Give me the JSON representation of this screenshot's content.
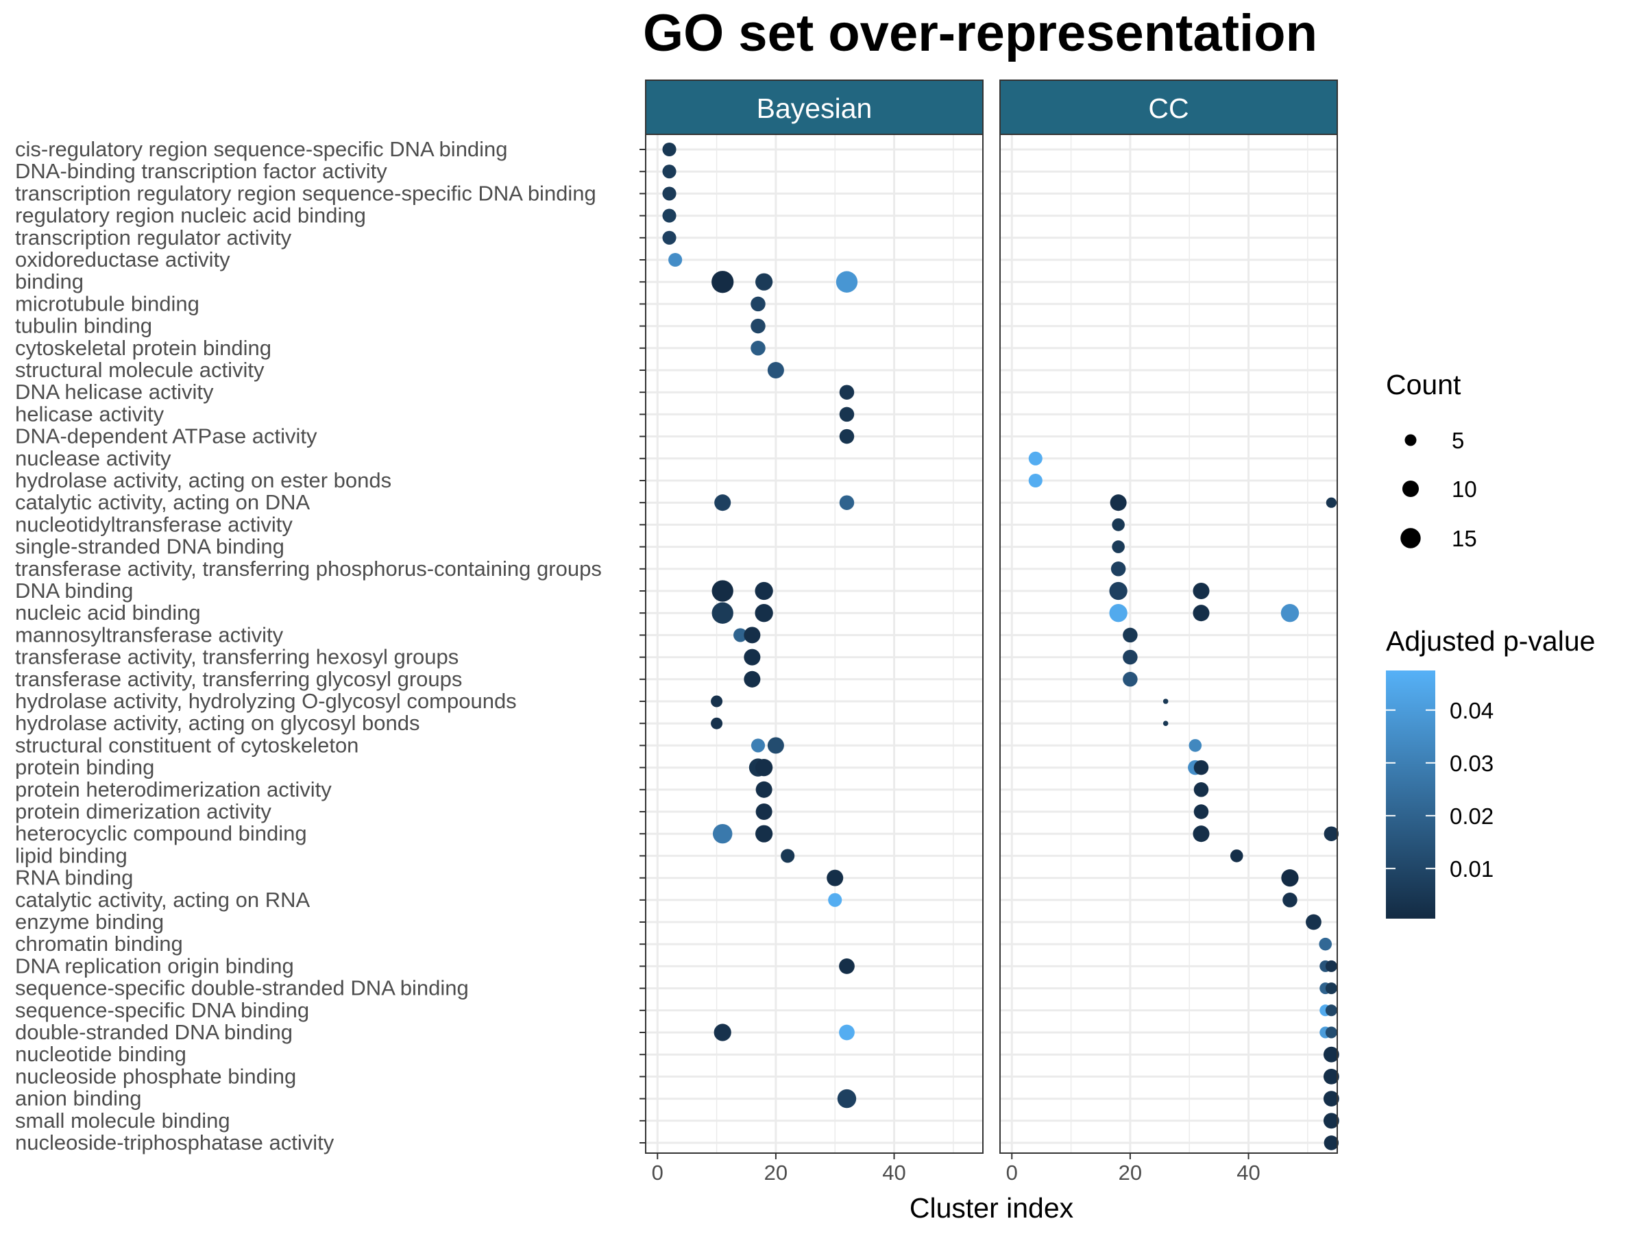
{
  "chart_data": {
    "type": "scatter",
    "title": "GO set over-representation",
    "xlabel": "Cluster index",
    "ylabel": "",
    "xlim": [
      -2,
      55
    ],
    "xticks": [
      0,
      20,
      40
    ],
    "grid": true,
    "legend_placement": "right",
    "panels": [
      "Bayesian",
      "CC"
    ],
    "terms": [
      "cis-regulatory region sequence-specific DNA binding",
      "DNA-binding transcription factor activity",
      "transcription regulatory region sequence-specific DNA binding",
      "regulatory region nucleic acid binding",
      "transcription regulator activity",
      "oxidoreductase activity",
      "binding",
      "microtubule binding",
      "tubulin binding",
      "cytoskeletal protein binding",
      "structural molecule activity",
      "DNA helicase activity",
      "helicase activity",
      "DNA-dependent ATPase activity",
      "nuclease activity",
      "hydrolase activity, acting on ester bonds",
      "catalytic activity, acting on DNA",
      "nucleotidyltransferase activity",
      "single-stranded DNA binding",
      "transferase activity, transferring phosphorus-containing groups",
      "DNA binding",
      "nucleic acid binding",
      "mannosyltransferase activity",
      "transferase activity, transferring hexosyl groups",
      "transferase activity, transferring glycosyl groups",
      "hydrolase activity, hydrolyzing O-glycosyl compounds",
      "hydrolase activity, acting on glycosyl bonds",
      "structural constituent of cytoskeleton",
      "protein binding",
      "protein heterodimerization activity",
      "protein dimerization activity",
      "heterocyclic compound binding",
      "lipid binding",
      "RNA binding",
      "catalytic activity, acting on RNA",
      "enzyme binding",
      "chromatin binding",
      "DNA replication origin binding",
      "sequence-specific double-stranded DNA binding",
      "sequence-specific DNA binding",
      "double-stranded DNA binding",
      "nucleotide binding",
      "nucleoside phosphate binding",
      "anion binding",
      "small molecule binding",
      "nucleoside-triphosphatase activity"
    ],
    "points": [
      {
        "panel": "Bayesian",
        "term": "cis-regulatory region sequence-specific DNA binding",
        "x": 2,
        "count": 7,
        "padj": 0.005
      },
      {
        "panel": "Bayesian",
        "term": "DNA-binding transcription factor activity",
        "x": 2,
        "count": 7,
        "padj": 0.006
      },
      {
        "panel": "Bayesian",
        "term": "transcription regulatory region sequence-specific DNA binding",
        "x": 2,
        "count": 7,
        "padj": 0.006
      },
      {
        "panel": "Bayesian",
        "term": "regulatory region nucleic acid binding",
        "x": 2,
        "count": 7,
        "padj": 0.007
      },
      {
        "panel": "Bayesian",
        "term": "transcription regulator activity",
        "x": 2,
        "count": 7,
        "padj": 0.008
      },
      {
        "panel": "Bayesian",
        "term": "oxidoreductase activity",
        "x": 3,
        "count": 7,
        "padj": 0.035
      },
      {
        "panel": "Bayesian",
        "term": "binding",
        "x": 11,
        "count": 18,
        "padj": 0.001
      },
      {
        "panel": "Bayesian",
        "term": "binding",
        "x": 18,
        "count": 11,
        "padj": 0.006
      },
      {
        "panel": "Bayesian",
        "term": "binding",
        "x": 32,
        "count": 17,
        "padj": 0.038
      },
      {
        "panel": "Bayesian",
        "term": "microtubule binding",
        "x": 17,
        "count": 8,
        "padj": 0.009
      },
      {
        "panel": "Bayesian",
        "term": "tubulin binding",
        "x": 17,
        "count": 8,
        "padj": 0.01
      },
      {
        "panel": "Bayesian",
        "term": "cytoskeletal protein binding",
        "x": 17,
        "count": 8,
        "padj": 0.018
      },
      {
        "panel": "Bayesian",
        "term": "structural molecule activity",
        "x": 20,
        "count": 10,
        "padj": 0.015
      },
      {
        "panel": "Bayesian",
        "term": "DNA helicase activity",
        "x": 32,
        "count": 8,
        "padj": 0.004
      },
      {
        "panel": "Bayesian",
        "term": "helicase activity",
        "x": 32,
        "count": 8,
        "padj": 0.004
      },
      {
        "panel": "Bayesian",
        "term": "DNA-dependent ATPase activity",
        "x": 32,
        "count": 8,
        "padj": 0.004
      },
      {
        "panel": "Bayesian",
        "term": "catalytic activity, acting on DNA",
        "x": 11,
        "count": 10,
        "padj": 0.008
      },
      {
        "panel": "Bayesian",
        "term": "catalytic activity, acting on DNA",
        "x": 32,
        "count": 8,
        "padj": 0.02
      },
      {
        "panel": "Bayesian",
        "term": "DNA binding",
        "x": 11,
        "count": 17,
        "padj": 0.001
      },
      {
        "panel": "Bayesian",
        "term": "DNA binding",
        "x": 18,
        "count": 12,
        "padj": 0.002
      },
      {
        "panel": "Bayesian",
        "term": "nucleic acid binding",
        "x": 11,
        "count": 17,
        "padj": 0.006
      },
      {
        "panel": "Bayesian",
        "term": "nucleic acid binding",
        "x": 18,
        "count": 12,
        "padj": 0.002
      },
      {
        "panel": "Bayesian",
        "term": "mannosyltransferase activity",
        "x": 14,
        "count": 7,
        "padj": 0.02
      },
      {
        "panel": "Bayesian",
        "term": "mannosyltransferase activity",
        "x": 16,
        "count": 10,
        "padj": 0.002
      },
      {
        "panel": "Bayesian",
        "term": "transferase activity, transferring hexosyl groups",
        "x": 16,
        "count": 10,
        "padj": 0.002
      },
      {
        "panel": "Bayesian",
        "term": "transferase activity, transferring glycosyl groups",
        "x": 16,
        "count": 10,
        "padj": 0.002
      },
      {
        "panel": "Bayesian",
        "term": "hydrolase activity, hydrolyzing O-glycosyl compounds",
        "x": 10,
        "count": 5,
        "padj": 0.003
      },
      {
        "panel": "Bayesian",
        "term": "hydrolase activity, acting on glycosyl bonds",
        "x": 10,
        "count": 5,
        "padj": 0.003
      },
      {
        "panel": "Bayesian",
        "term": "structural constituent of cytoskeleton",
        "x": 17,
        "count": 7,
        "padj": 0.03
      },
      {
        "panel": "Bayesian",
        "term": "structural constituent of cytoskeleton",
        "x": 20,
        "count": 10,
        "padj": 0.012
      },
      {
        "panel": "Bayesian",
        "term": "protein binding",
        "x": 17,
        "count": 12,
        "padj": 0.004
      },
      {
        "panel": "Bayesian",
        "term": "protein binding",
        "x": 18,
        "count": 11,
        "padj": 0.002
      },
      {
        "panel": "Bayesian",
        "term": "protein heterodimerization activity",
        "x": 18,
        "count": 10,
        "padj": 0.002
      },
      {
        "panel": "Bayesian",
        "term": "protein dimerization activity",
        "x": 18,
        "count": 10,
        "padj": 0.002
      },
      {
        "panel": "Bayesian",
        "term": "heterocyclic compound binding",
        "x": 11,
        "count": 14,
        "padj": 0.028
      },
      {
        "panel": "Bayesian",
        "term": "heterocyclic compound binding",
        "x": 18,
        "count": 11,
        "padj": 0.002
      },
      {
        "panel": "Bayesian",
        "term": "lipid binding",
        "x": 22,
        "count": 7,
        "padj": 0.005
      },
      {
        "panel": "Bayesian",
        "term": "RNA binding",
        "x": 30,
        "count": 10,
        "padj": 0.002
      },
      {
        "panel": "Bayesian",
        "term": "catalytic activity, acting on RNA",
        "x": 30,
        "count": 7,
        "padj": 0.046
      },
      {
        "panel": "Bayesian",
        "term": "DNA replication origin binding",
        "x": 32,
        "count": 9,
        "padj": 0.002
      },
      {
        "panel": "Bayesian",
        "term": "double-stranded DNA binding",
        "x": 11,
        "count": 11,
        "padj": 0.003
      },
      {
        "panel": "Bayesian",
        "term": "double-stranded DNA binding",
        "x": 32,
        "count": 9,
        "padj": 0.046
      },
      {
        "panel": "Bayesian",
        "term": "anion binding",
        "x": 32,
        "count": 13,
        "padj": 0.008
      },
      {
        "panel": "CC",
        "term": "nuclease activity",
        "x": 4,
        "count": 7,
        "padj": 0.046
      },
      {
        "panel": "CC",
        "term": "hydrolase activity, acting on ester bonds",
        "x": 4,
        "count": 7,
        "padj": 0.046
      },
      {
        "panel": "CC",
        "term": "catalytic activity, acting on DNA",
        "x": 18,
        "count": 10,
        "padj": 0.002
      },
      {
        "panel": "CC",
        "term": "catalytic activity, acting on DNA",
        "x": 54,
        "count": 4,
        "padj": 0.004
      },
      {
        "panel": "CC",
        "term": "nucleotidyltransferase activity",
        "x": 18,
        "count": 6,
        "padj": 0.005
      },
      {
        "panel": "CC",
        "term": "single-stranded DNA binding",
        "x": 18,
        "count": 6,
        "padj": 0.006
      },
      {
        "panel": "CC",
        "term": "transferase activity, transferring phosphorus-containing groups",
        "x": 18,
        "count": 8,
        "padj": 0.008
      },
      {
        "panel": "CC",
        "term": "DNA binding",
        "x": 18,
        "count": 12,
        "padj": 0.008
      },
      {
        "panel": "CC",
        "term": "DNA binding",
        "x": 32,
        "count": 10,
        "padj": 0.002
      },
      {
        "panel": "CC",
        "term": "nucleic acid binding",
        "x": 18,
        "count": 12,
        "padj": 0.045
      },
      {
        "panel": "CC",
        "term": "nucleic acid binding",
        "x": 32,
        "count": 10,
        "padj": 0.002
      },
      {
        "panel": "CC",
        "term": "nucleic acid binding",
        "x": 47,
        "count": 12,
        "padj": 0.036
      },
      {
        "panel": "CC",
        "term": "mannosyltransferase activity",
        "x": 20,
        "count": 8,
        "padj": 0.005
      },
      {
        "panel": "CC",
        "term": "transferase activity, transferring hexosyl groups",
        "x": 20,
        "count": 8,
        "padj": 0.008
      },
      {
        "panel": "CC",
        "term": "transferase activity, transferring glycosyl groups",
        "x": 20,
        "count": 8,
        "padj": 0.015
      },
      {
        "panel": "CC",
        "term": "hydrolase activity, hydrolyzing O-glycosyl compounds",
        "x": 26,
        "count": 1,
        "padj": 0.005
      },
      {
        "panel": "CC",
        "term": "hydrolase activity, acting on glycosyl bonds",
        "x": 26,
        "count": 1,
        "padj": 0.005
      },
      {
        "panel": "CC",
        "term": "structural constituent of cytoskeleton",
        "x": 31,
        "count": 6,
        "padj": 0.033
      },
      {
        "panel": "CC",
        "term": "protein binding",
        "x": 31,
        "count": 8,
        "padj": 0.035
      },
      {
        "panel": "CC",
        "term": "protein binding",
        "x": 32,
        "count": 8,
        "padj": 0.002
      },
      {
        "panel": "CC",
        "term": "protein heterodimerization activity",
        "x": 32,
        "count": 8,
        "padj": 0.002
      },
      {
        "panel": "CC",
        "term": "protein dimerization activity",
        "x": 32,
        "count": 8,
        "padj": 0.002
      },
      {
        "panel": "CC",
        "term": "heterocyclic compound binding",
        "x": 32,
        "count": 10,
        "padj": 0.002
      },
      {
        "panel": "CC",
        "term": "heterocyclic compound binding",
        "x": 54,
        "count": 8,
        "padj": 0.003
      },
      {
        "panel": "CC",
        "term": "lipid binding",
        "x": 38,
        "count": 6,
        "padj": 0.002
      },
      {
        "panel": "CC",
        "term": "RNA binding",
        "x": 47,
        "count": 11,
        "padj": 0.001
      },
      {
        "panel": "CC",
        "term": "catalytic activity, acting on RNA",
        "x": 47,
        "count": 8,
        "padj": 0.003
      },
      {
        "panel": "CC",
        "term": "enzyme binding",
        "x": 51,
        "count": 9,
        "padj": 0.003
      },
      {
        "panel": "CC",
        "term": "chromatin binding",
        "x": 53,
        "count": 6,
        "padj": 0.022
      },
      {
        "panel": "CC",
        "term": "DNA replication origin binding",
        "x": 53,
        "count": 5,
        "padj": 0.015
      },
      {
        "panel": "CC",
        "term": "DNA replication origin binding",
        "x": 54,
        "count": 5,
        "padj": 0.003
      },
      {
        "panel": "CC",
        "term": "sequence-specific double-stranded DNA binding",
        "x": 53,
        "count": 5,
        "padj": 0.02
      },
      {
        "panel": "CC",
        "term": "sequence-specific double-stranded DNA binding",
        "x": 54,
        "count": 5,
        "padj": 0.005
      },
      {
        "panel": "CC",
        "term": "sequence-specific DNA binding",
        "x": 53,
        "count": 5,
        "padj": 0.045
      },
      {
        "panel": "CC",
        "term": "sequence-specific DNA binding",
        "x": 54,
        "count": 5,
        "padj": 0.01
      },
      {
        "panel": "CC",
        "term": "double-stranded DNA binding",
        "x": 53,
        "count": 5,
        "padj": 0.04
      },
      {
        "panel": "CC",
        "term": "double-stranded DNA binding",
        "x": 54,
        "count": 5,
        "padj": 0.012
      },
      {
        "panel": "CC",
        "term": "nucleotide binding",
        "x": 54,
        "count": 9,
        "padj": 0.002
      },
      {
        "panel": "CC",
        "term": "nucleoside phosphate binding",
        "x": 54,
        "count": 9,
        "padj": 0.002
      },
      {
        "panel": "CC",
        "term": "anion binding",
        "x": 54,
        "count": 9,
        "padj": 0.002
      },
      {
        "panel": "CC",
        "term": "small molecule binding",
        "x": 54,
        "count": 9,
        "padj": 0.002
      },
      {
        "panel": "CC",
        "term": "nucleoside-triphosphatase activity",
        "x": 54,
        "count": 8,
        "padj": 0.002
      }
    ],
    "legends": {
      "size": {
        "title": "Count",
        "breaks": [
          5,
          10,
          15
        ],
        "labels": [
          "5",
          "10",
          "15"
        ]
      },
      "color": {
        "title": "Adjusted p-value",
        "breaks": [
          0.01,
          0.02,
          0.03,
          0.04
        ],
        "labels": [
          "0.01",
          "0.02",
          "0.03",
          "0.04"
        ],
        "range": [
          0.0005,
          0.0475
        ],
        "low_color": "#132B43",
        "high_color": "#56B1F7"
      }
    },
    "colors": {
      "strip_fill": "#226680",
      "strip_text": "#ffffff",
      "grid": "#ebebeb",
      "panel_border": "#333333"
    }
  }
}
